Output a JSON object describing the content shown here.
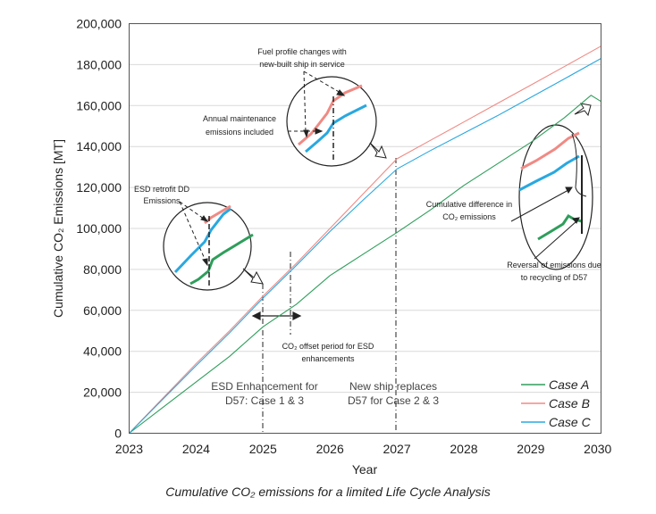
{
  "chart_data": {
    "type": "line",
    "xlabel": "Year",
    "ylabel": "Cumulative CO₂ Emissions [MT]",
    "xlim": [
      2023,
      2030.05
    ],
    "ylim": [
      0,
      200000
    ],
    "x_ticks": [
      "2023",
      "2024",
      "2025",
      "2026",
      "2027",
      "2028",
      "2029",
      "2030"
    ],
    "y_ticks": [
      "0",
      "20,000",
      "40,000",
      "60,000",
      "80,000",
      "100,000",
      "120,000",
      "140,000",
      "160,000",
      "180,000",
      "200,000"
    ],
    "legend_position": "bottom-right",
    "series": [
      {
        "name": "Case A",
        "color": "#2e9e5b",
        "x": [
          2023,
          2023.5,
          2024,
          2024.5,
          2025,
          2025.5,
          2026,
          2026.5,
          2027,
          2027.5,
          2028,
          2028.5,
          2029,
          2029.5,
          2029.9,
          2030.05
        ],
        "y": [
          0,
          12500,
          25000,
          37500,
          52000,
          63000,
          77000,
          87500,
          98000,
          109000,
          121000,
          131500,
          142000,
          154000,
          165000,
          162000
        ]
      },
      {
        "name": "Case B",
        "color": "#f08a84",
        "x": [
          2023,
          2023.5,
          2024,
          2024.5,
          2025,
          2025.5,
          2026,
          2026.5,
          2027,
          2027.5,
          2028,
          2028.5,
          2029,
          2029.5,
          2030.05
        ],
        "y": [
          0,
          17000,
          34000,
          50000,
          67000,
          83000,
          100000,
          117000,
          134000,
          143000,
          152000,
          161000,
          170000,
          179000,
          189000
        ]
      },
      {
        "name": "Case C",
        "color": "#29a8e0",
        "x": [
          2023,
          2023.5,
          2024,
          2024.5,
          2025,
          2025.5,
          2026,
          2026.5,
          2027,
          2027.5,
          2028,
          2028.5,
          2029,
          2029.5,
          2030.05
        ],
        "y": [
          0,
          16500,
          33000,
          49000,
          66000,
          82000,
          98500,
          114000,
          129000,
          138000,
          146500,
          155000,
          164000,
          173000,
          183000
        ]
      }
    ],
    "annotations": {
      "esd_label_1": "ESD Enhancement for",
      "esd_label_2": "D57: Case 1 & 3",
      "new_ship_1": "New ship replaces",
      "new_ship_2": "D57 for Case 2 & 3",
      "fuel_profile_1": "Fuel profile changes with",
      "fuel_profile_2": "new-built ship in service",
      "annual_maint_1": "Annual maintenance",
      "annual_maint_2": "emissions included",
      "esd_retrofit_1": "ESD retrofit DD",
      "esd_retrofit_2": "Emissions",
      "co2_offset_1": "CO₂ offset period for ESD",
      "co2_offset_2": "enhancements",
      "cum_diff_1": "Cumulative difference in",
      "cum_diff_2": "CO₂ emissions",
      "reversal_1": "Reversal of emissions due",
      "reversal_2": "to recycling of D57"
    }
  },
  "caption": "Cumulative CO₂ emissions for a limited Life Cycle Analysis"
}
